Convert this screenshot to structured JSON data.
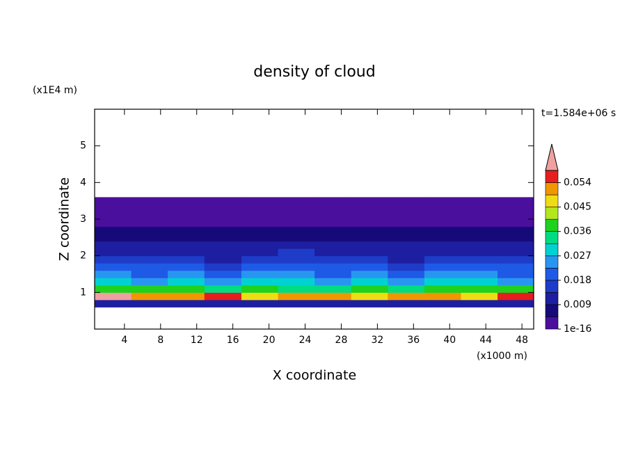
{
  "chart_data": {
    "type": "heatmap",
    "title": "density of cloud",
    "x_label": "X coordinate",
    "y_label": "Z coordinate",
    "x_unit": "(x1000 m)",
    "y_unit": "(x1E4 m)",
    "annotation": "t=1.584e+06 s",
    "xlim": [
      0.7,
      49.3
    ],
    "ylim": [
      0,
      6
    ],
    "xticks": [
      4,
      8,
      12,
      16,
      20,
      24,
      28,
      32,
      36,
      40,
      44,
      48
    ],
    "yticks": [
      1,
      2,
      3,
      4,
      5
    ],
    "x": [
      2.7,
      6.8,
      10.8,
      14.9,
      19.0,
      23.0,
      27.1,
      31.1,
      35.2,
      39.2,
      43.3,
      47.3
    ],
    "y": [
      0.7,
      0.9,
      1.1,
      1.3,
      1.5,
      1.7,
      1.9,
      2.1,
      2.3,
      2.5,
      2.7,
      2.9,
      3.1,
      3.3,
      3.5
    ],
    "z": [
      [
        0.012,
        0.011,
        0.012,
        0.01,
        0.012,
        0.011,
        0.012,
        0.012,
        0.011,
        0.012,
        0.011,
        0.012
      ],
      [
        0.06,
        0.052,
        0.05,
        0.055,
        0.048,
        0.05,
        0.053,
        0.047,
        0.05,
        0.052,
        0.049,
        0.055
      ],
      [
        0.04,
        0.036,
        0.038,
        0.034,
        0.037,
        0.033,
        0.035,
        0.038,
        0.034,
        0.036,
        0.04,
        0.037
      ],
      [
        0.028,
        0.026,
        0.029,
        0.025,
        0.027,
        0.03,
        0.026,
        0.028,
        0.025,
        0.027,
        0.029,
        0.026
      ],
      [
        0.024,
        0.022,
        0.025,
        0.021,
        0.023,
        0.026,
        0.022,
        0.024,
        0.021,
        0.023,
        0.025,
        0.022
      ],
      [
        0.019,
        0.018,
        0.02,
        0.017,
        0.019,
        0.021,
        0.018,
        0.02,
        0.017,
        0.019,
        0.02,
        0.018
      ],
      [
        0.015,
        0.014,
        0.016,
        0.013,
        0.015,
        0.017,
        0.014,
        0.016,
        0.013,
        0.015,
        0.016,
        0.014
      ],
      [
        0.012,
        0.013,
        0.012,
        0.011,
        0.013,
        0.014,
        0.012,
        0.013,
        0.011,
        0.012,
        0.013,
        0.012
      ],
      [
        0.01,
        0.011,
        0.01,
        0.0095,
        0.011,
        0.012,
        0.01,
        0.011,
        0.0095,
        0.01,
        0.011,
        0.01
      ],
      [
        0.008,
        0.008,
        0.007,
        0.007,
        0.008,
        0.0085,
        0.008,
        0.008,
        0.007,
        0.008,
        0.008,
        0.007
      ],
      [
        0.005,
        0.006,
        0.005,
        0.005,
        0.006,
        0.006,
        0.005,
        0.006,
        0.005,
        0.005,
        0.006,
        0.005
      ],
      [
        0.004,
        0.004,
        0.003,
        0.004,
        0.004,
        0.0042,
        0.004,
        0.004,
        0.003,
        0.004,
        0.004,
        0.004
      ],
      [
        0.002,
        0.002,
        0.003,
        0.002,
        0.002,
        0.003,
        0.002,
        0.002,
        0.002,
        0.003,
        0.002,
        0.002
      ],
      [
        0.001,
        0.001,
        0.001,
        0.001,
        0.001,
        0.001,
        0.001,
        0.001,
        0.001,
        0.001,
        0.001,
        0.001
      ],
      [
        0.0005,
        0.0005,
        0.0005,
        0.0005,
        0.0005,
        0.0005,
        0.0005,
        0.0005,
        0.0005,
        0.0005,
        0.0005,
        0.0005
      ]
    ],
    "levels": [
      1e-16,
      0.0045,
      0.009,
      0.0135,
      0.018,
      0.0225,
      0.027,
      0.0315,
      0.036,
      0.0405,
      0.045,
      0.0495,
      0.054,
      0.0585
    ],
    "colors": [
      "#4b0f9e",
      "#160a7a",
      "#1e1ea0",
      "#1e3cc8",
      "#1e5ae6",
      "#2896f0",
      "#00d2d2",
      "#00dc82",
      "#1ed21e",
      "#b4e61e",
      "#f0dc14",
      "#f09600",
      "#e61e1e"
    ],
    "extend_color": "#f0a0a0",
    "colorbar_ticks": [
      1e-16,
      0.009,
      0.018,
      0.027,
      0.036,
      0.045,
      0.054
    ]
  }
}
